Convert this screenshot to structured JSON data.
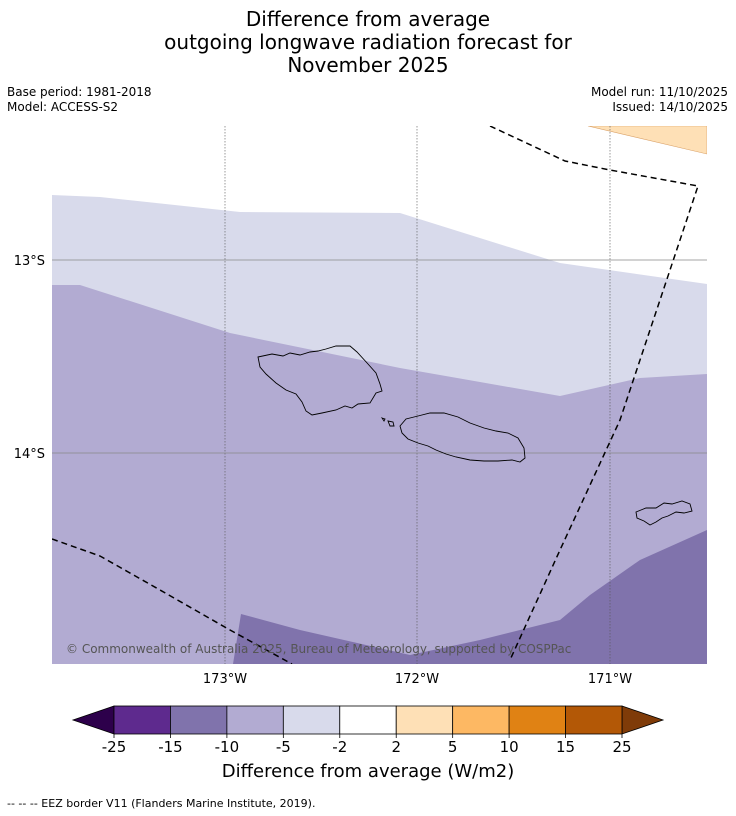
{
  "title": {
    "line1": "Difference from average",
    "line2": "outgoing longwave radiation forecast for",
    "line3": "November 2025"
  },
  "meta": {
    "base_period": "Base period: 1981-2018",
    "model": "Model: ACCESS-S2",
    "model_run": "Model run: 11/10/2025",
    "issued": "Issued: 14/10/2025"
  },
  "map": {
    "lat_labels": [
      "13°S",
      "14°S"
    ],
    "lon_labels": [
      "173°W",
      "172°W",
      "171°W"
    ],
    "copyright": "© Commonwealth of Australia 2025, Bureau of Meteorology, supported by COSPPac"
  },
  "colorbar": {
    "title": "Difference from average (W/m2)",
    "ticks": [
      "-25",
      "-15",
      "-10",
      "-5",
      "-2",
      "2",
      "5",
      "10",
      "15",
      "25"
    ],
    "colors": {
      "under": "#2d004b",
      "bins": [
        "#5e2a8e",
        "#8073ac",
        "#b2abd2",
        "#d8daeb",
        "#ffffff",
        "#fee0b6",
        "#fdb863",
        "#e08214",
        "#b35806"
      ],
      "over": "#7f3b08"
    }
  },
  "footnote": "--  --  -- EEZ border V11 (Flanders Marine Institute, 2019)."
}
